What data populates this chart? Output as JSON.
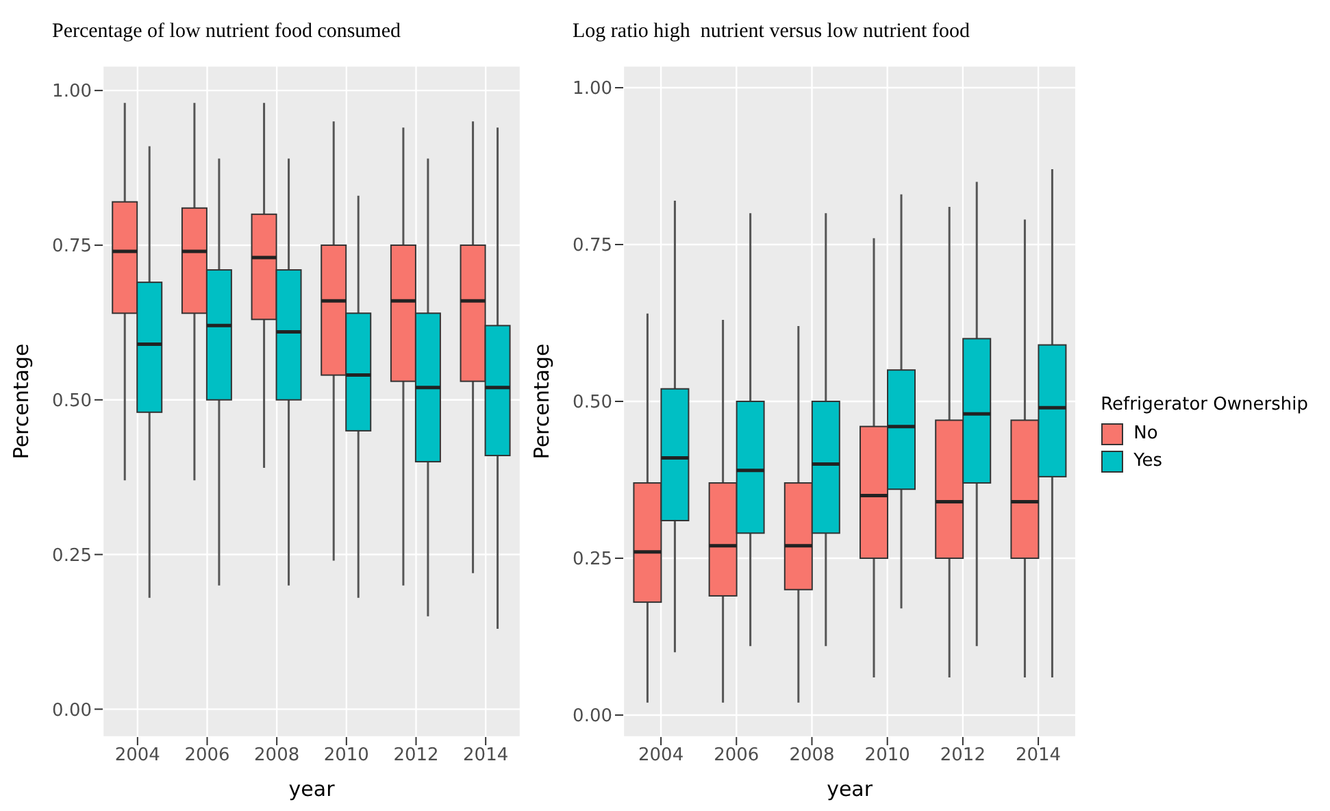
{
  "chart_data": [
    {
      "type": "box",
      "title": "Percentage of low nutrient food consumed",
      "xlabel": "year",
      "ylabel": "Percentage",
      "categories": [
        "2004",
        "2006",
        "2008",
        "2010",
        "2012",
        "2014"
      ],
      "ylim": [
        -0.045,
        1.04
      ],
      "yticks": [
        {
          "value": 0,
          "label": "0.00"
        },
        {
          "value": 0.25,
          "label": "0.25"
        },
        {
          "value": 0.5,
          "label": "0.50"
        },
        {
          "value": 0.75,
          "label": "0.75"
        },
        {
          "value": 1,
          "label": "1.00"
        }
      ],
      "grid": true,
      "legend": false,
      "series": [
        {
          "color": "#f8766d",
          "boxes": [
            {
              "low": 0.37,
              "q1": 0.64,
              "median": 0.74,
              "q3": 0.82,
              "high": 0.98
            },
            {
              "low": 0.37,
              "q1": 0.64,
              "median": 0.74,
              "q3": 0.81,
              "high": 0.98
            },
            {
              "low": 0.39,
              "q1": 0.63,
              "median": 0.73,
              "q3": 0.8,
              "high": 0.98
            },
            {
              "low": 0.24,
              "q1": 0.54,
              "median": 0.66,
              "q3": 0.75,
              "high": 0.95
            },
            {
              "low": 0.2,
              "q1": 0.53,
              "median": 0.66,
              "q3": 0.75,
              "high": 0.94
            },
            {
              "low": 0.22,
              "q1": 0.53,
              "median": 0.66,
              "q3": 0.75,
              "high": 0.95
            }
          ]
        },
        {
          "color": "#00bfc4",
          "boxes": [
            {
              "low": 0.18,
              "q1": 0.48,
              "median": 0.59,
              "q3": 0.69,
              "high": 0.91
            },
            {
              "low": 0.2,
              "q1": 0.5,
              "median": 0.62,
              "q3": 0.71,
              "high": 0.89
            },
            {
              "low": 0.2,
              "q1": 0.5,
              "median": 0.61,
              "q3": 0.71,
              "high": 0.89
            },
            {
              "low": 0.18,
              "q1": 0.45,
              "median": 0.54,
              "q3": 0.64,
              "high": 0.83
            },
            {
              "low": 0.15,
              "q1": 0.4,
              "median": 0.52,
              "q3": 0.64,
              "high": 0.89
            },
            {
              "low": 0.13,
              "q1": 0.41,
              "median": 0.52,
              "q3": 0.62,
              "high": 0.94
            }
          ]
        }
      ]
    },
    {
      "type": "box",
      "title": "Log ratio high  nutrient versus low nutrient food",
      "xlabel": "year",
      "ylabel": "Percentage",
      "legend_title": "Refrigerator Ownership",
      "categories": [
        "2004",
        "2006",
        "2008",
        "2010",
        "2012",
        "2014"
      ],
      "ylim": [
        -0.035,
        1.035
      ],
      "yticks": [
        {
          "value": 0,
          "label": "0.00"
        },
        {
          "value": 0.25,
          "label": "0.25"
        },
        {
          "value": 0.5,
          "label": "0.50"
        },
        {
          "value": 0.75,
          "label": "0.75"
        },
        {
          "value": 1,
          "label": "1.00"
        }
      ],
      "grid": true,
      "legend": "right",
      "series": [
        {
          "name": "No",
          "color": "#f8766d",
          "boxes": [
            {
              "low": 0.02,
              "q1": 0.18,
              "median": 0.26,
              "q3": 0.37,
              "high": 0.64
            },
            {
              "low": 0.02,
              "q1": 0.19,
              "median": 0.27,
              "q3": 0.37,
              "high": 0.63
            },
            {
              "low": 0.02,
              "q1": 0.2,
              "median": 0.27,
              "q3": 0.37,
              "high": 0.62
            },
            {
              "low": 0.06,
              "q1": 0.25,
              "median": 0.35,
              "q3": 0.46,
              "high": 0.76
            },
            {
              "low": 0.06,
              "q1": 0.25,
              "median": 0.34,
              "q3": 0.47,
              "high": 0.81
            },
            {
              "low": 0.06,
              "q1": 0.25,
              "median": 0.34,
              "q3": 0.47,
              "high": 0.79
            }
          ]
        },
        {
          "name": "Yes",
          "color": "#00bfc4",
          "boxes": [
            {
              "low": 0.1,
              "q1": 0.31,
              "median": 0.41,
              "q3": 0.52,
              "high": 0.82
            },
            {
              "low": 0.11,
              "q1": 0.29,
              "median": 0.39,
              "q3": 0.5,
              "high": 0.8
            },
            {
              "low": 0.11,
              "q1": 0.29,
              "median": 0.4,
              "q3": 0.5,
              "high": 0.8
            },
            {
              "low": 0.17,
              "q1": 0.36,
              "median": 0.46,
              "q3": 0.55,
              "high": 0.83
            },
            {
              "low": 0.11,
              "q1": 0.37,
              "median": 0.48,
              "q3": 0.6,
              "high": 0.85
            },
            {
              "low": 0.06,
              "q1": 0.38,
              "median": 0.49,
              "q3": 0.59,
              "high": 0.87
            }
          ]
        }
      ]
    }
  ]
}
